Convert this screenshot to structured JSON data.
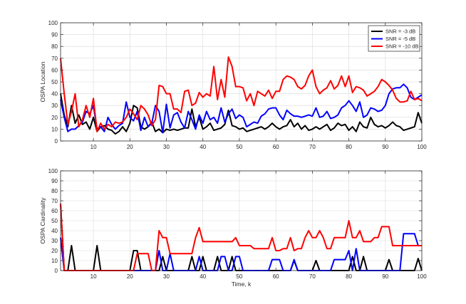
{
  "chart_data": [
    {
      "type": "line",
      "ylabel": "OSPA Location",
      "xlabel": "",
      "xlim": [
        1,
        100
      ],
      "ylim": [
        0,
        100
      ],
      "xticks": [
        10,
        20,
        30,
        40,
        50,
        60,
        70,
        80,
        90,
        100
      ],
      "yticks": [
        0,
        10,
        20,
        30,
        40,
        50,
        60,
        70,
        80,
        90,
        100
      ],
      "grid": true,
      "legend_position": "top-right",
      "series": [
        {
          "name": "SNR = -3 dB",
          "color": "#000000",
          "values": [
            40,
            22,
            12,
            30,
            15,
            22,
            14,
            16,
            10,
            20,
            8,
            12,
            13,
            10,
            9,
            6,
            8,
            12,
            8,
            15,
            30,
            28,
            12,
            10,
            12,
            16,
            8,
            10,
            7,
            10,
            9,
            10,
            9,
            10,
            11,
            11,
            27,
            12,
            20,
            10,
            12,
            15,
            9,
            10,
            11,
            14,
            26,
            13,
            12,
            10,
            11,
            8,
            9,
            10,
            11,
            12,
            10,
            12,
            15,
            12,
            10,
            12,
            13,
            18,
            12,
            15,
            10,
            13,
            9,
            10,
            12,
            10,
            12,
            14,
            9,
            11,
            15,
            13,
            14,
            9,
            12,
            8,
            16,
            12,
            11,
            20,
            14,
            12,
            13,
            11,
            13,
            16,
            13,
            12,
            9,
            10,
            11,
            12,
            24,
            15
          ]
        },
        {
          "name": "SNR = -5 dB",
          "color": "#0000ff",
          "values": [
            35,
            20,
            8,
            10,
            10,
            13,
            16,
            25,
            23,
            30,
            10,
            12,
            8,
            20,
            14,
            10,
            13,
            15,
            33,
            20,
            17,
            25,
            9,
            20,
            12,
            15,
            30,
            25,
            7,
            31,
            11,
            22,
            24,
            16,
            11,
            25,
            18,
            10,
            22,
            15,
            25,
            18,
            20,
            15,
            28,
            16,
            23,
            27,
            19,
            22,
            20,
            12,
            14,
            16,
            15,
            21,
            23,
            27,
            28,
            28,
            22,
            18,
            26,
            23,
            21,
            21,
            20,
            21,
            22,
            21,
            28,
            20,
            21,
            25,
            19,
            20,
            22,
            28,
            30,
            34,
            30,
            25,
            33,
            20,
            22,
            28,
            27,
            25,
            26,
            30,
            40,
            44,
            45,
            45,
            48,
            45,
            37,
            35,
            37,
            39
          ]
        },
        {
          "name": "SNR = -10 dB",
          "color": "#ff0000",
          "values": [
            70,
            40,
            14,
            25,
            40,
            12,
            18,
            30,
            20,
            36,
            8,
            15,
            10,
            14,
            12,
            16,
            15,
            16,
            20,
            27,
            23,
            18,
            30,
            27,
            22,
            13,
            18,
            47,
            46,
            40,
            40,
            27,
            27,
            24,
            42,
            43,
            30,
            32,
            41,
            37,
            40,
            38,
            63,
            35,
            52,
            37,
            71,
            63,
            46,
            46,
            45,
            34,
            40,
            30,
            42,
            40,
            38,
            43,
            36,
            42,
            42,
            52,
            55,
            54,
            52,
            46,
            44,
            47,
            55,
            60,
            46,
            40,
            43,
            45,
            51,
            44,
            47,
            55,
            46,
            55,
            41,
            46,
            45,
            43,
            38,
            40,
            42,
            46,
            52,
            50,
            47,
            43,
            36,
            33,
            33,
            34,
            42,
            35,
            36,
            34
          ]
        }
      ]
    },
    {
      "type": "line",
      "ylabel": "OSPA Cardinality",
      "xlabel": "Time, k",
      "xlim": [
        1,
        100
      ],
      "ylim": [
        0,
        100
      ],
      "xticks": [
        10,
        20,
        30,
        40,
        50,
        60,
        70,
        80,
        90,
        100
      ],
      "yticks": [
        0,
        10,
        20,
        30,
        40,
        50,
        60,
        70,
        80,
        90,
        100
      ],
      "grid": true,
      "series": [
        {
          "name": "SNR = -3 dB",
          "color": "#000000",
          "values": [
            67,
            0,
            0,
            25,
            0,
            0,
            0,
            0,
            0,
            0,
            25,
            0,
            0,
            0,
            0,
            0,
            0,
            0,
            0,
            0,
            20,
            20,
            0,
            0,
            0,
            0,
            0,
            0,
            14,
            0,
            0,
            0,
            0,
            0,
            0,
            0,
            14,
            0,
            0,
            14,
            0,
            0,
            0,
            14,
            0,
            0,
            0,
            14,
            0,
            0,
            0,
            0,
            0,
            0,
            0,
            0,
            0,
            0,
            0,
            0,
            0,
            0,
            0,
            0,
            10,
            0,
            0,
            0,
            0,
            0,
            10,
            0,
            0,
            0,
            0,
            0,
            0,
            0,
            0,
            0,
            14,
            0,
            0,
            14,
            0,
            0,
            0,
            0,
            0,
            0,
            11,
            0,
            0,
            0,
            0,
            0,
            0,
            0,
            12,
            0
          ]
        },
        {
          "name": "SNR = -5 dB",
          "color": "#0000ff",
          "values": [
            33,
            0,
            0,
            0,
            0,
            0,
            0,
            0,
            0,
            0,
            0,
            0,
            0,
            0,
            0,
            0,
            0,
            0,
            0,
            0,
            0,
            0,
            0,
            0,
            0,
            0,
            0,
            20,
            0,
            0,
            17,
            0,
            0,
            0,
            0,
            0,
            0,
            0,
            14,
            0,
            0,
            0,
            0,
            0,
            14,
            14,
            0,
            0,
            14,
            14,
            0,
            0,
            0,
            0,
            0,
            0,
            0,
            0,
            11,
            11,
            11,
            0,
            0,
            0,
            11,
            0,
            0,
            0,
            0,
            0,
            0,
            0,
            0,
            0,
            0,
            11,
            11,
            11,
            11,
            20,
            0,
            22,
            0,
            0,
            0,
            0,
            0,
            0,
            0,
            0,
            0,
            0,
            0,
            0,
            37,
            37,
            37,
            37,
            25,
            25
          ]
        },
        {
          "name": "SNR = -10 dB",
          "color": "#ff0000",
          "values": [
            67,
            0,
            0,
            0,
            0,
            0,
            0,
            0,
            0,
            0,
            0,
            0,
            0,
            0,
            0,
            0,
            0,
            0,
            0,
            0,
            0,
            17,
            17,
            17,
            17,
            0,
            0,
            40,
            33,
            33,
            17,
            17,
            17,
            17,
            17,
            17,
            17,
            33,
            43,
            29,
            29,
            29,
            29,
            29,
            29,
            29,
            29,
            29,
            33,
            25,
            25,
            25,
            25,
            22,
            22,
            22,
            22,
            22,
            33,
            20,
            20,
            22,
            22,
            33,
            20,
            22,
            22,
            33,
            40,
            33,
            33,
            40,
            33,
            22,
            22,
            33,
            33,
            33,
            33,
            50,
            33,
            33,
            40,
            29,
            29,
            29,
            33,
            33,
            44,
            44,
            44,
            25,
            25,
            25,
            25,
            25,
            25,
            25,
            25,
            25
          ]
        }
      ]
    }
  ]
}
